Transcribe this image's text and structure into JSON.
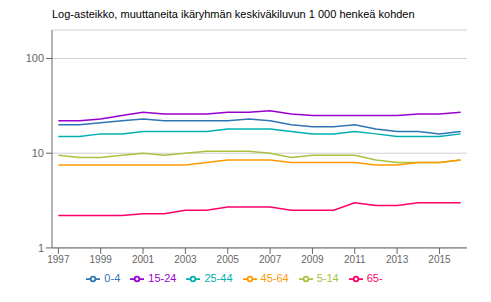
{
  "chart_data": {
    "type": "line",
    "title": "Log-asteikko, muuttaneita ikäryhmän keskiväkiluvun 1 000 henkeä kohden",
    "x": [
      1997,
      1998,
      1999,
      2000,
      2001,
      2002,
      2003,
      2004,
      2005,
      2006,
      2007,
      2008,
      2009,
      2010,
      2011,
      2012,
      2013,
      2014,
      2015,
      2016
    ],
    "series": [
      {
        "name": "0-4",
        "color": "#2E75B6",
        "values": [
          20,
          20,
          21,
          22,
          23,
          22,
          22,
          22,
          22,
          23,
          22,
          20,
          19,
          19,
          20,
          18,
          17,
          17,
          16,
          17
        ]
      },
      {
        "name": "5-14",
        "color": "#A9C23F",
        "values": [
          9.5,
          9.0,
          9.0,
          9.5,
          10,
          9.5,
          10,
          10.5,
          10.5,
          10.5,
          10,
          9.0,
          9.5,
          9.5,
          9.5,
          8.5,
          8.0,
          8.0,
          8.0,
          8.5
        ]
      },
      {
        "name": "15-24",
        "color": "#9900CC",
        "values": [
          22,
          22,
          23,
          25,
          27,
          26,
          26,
          26,
          27,
          27,
          28,
          26,
          25,
          25,
          25,
          25,
          25,
          26,
          26,
          27
        ]
      },
      {
        "name": "25-44",
        "color": "#00B0B0",
        "values": [
          15,
          15,
          16,
          16,
          17,
          17,
          17,
          17,
          18,
          18,
          18,
          17,
          16,
          16,
          17,
          16,
          15,
          15,
          15,
          16
        ]
      },
      {
        "name": "45-64",
        "color": "#FF9900",
        "values": [
          7.5,
          7.5,
          7.5,
          7.5,
          7.5,
          7.5,
          7.5,
          8.0,
          8.5,
          8.5,
          8.5,
          8.0,
          8.0,
          8.0,
          8.0,
          7.5,
          7.5,
          8.0,
          8.0,
          8.5
        ]
      },
      {
        "name": "65-",
        "color": "#FF0066",
        "values": [
          2.2,
          2.2,
          2.2,
          2.2,
          2.3,
          2.3,
          2.5,
          2.5,
          2.7,
          2.7,
          2.7,
          2.5,
          2.5,
          2.5,
          3.0,
          2.8,
          2.8,
          3.0,
          3.0,
          3.0
        ]
      }
    ],
    "xlim": [
      1996.7,
      2016.3
    ],
    "xticks": [
      1997,
      1999,
      2001,
      2003,
      2005,
      2007,
      2009,
      2011,
      2013,
      2015
    ],
    "ylim": [
      1,
      200
    ],
    "yticks": [
      1,
      10,
      100
    ],
    "log": "y",
    "grid": true,
    "legend": "bottom"
  }
}
